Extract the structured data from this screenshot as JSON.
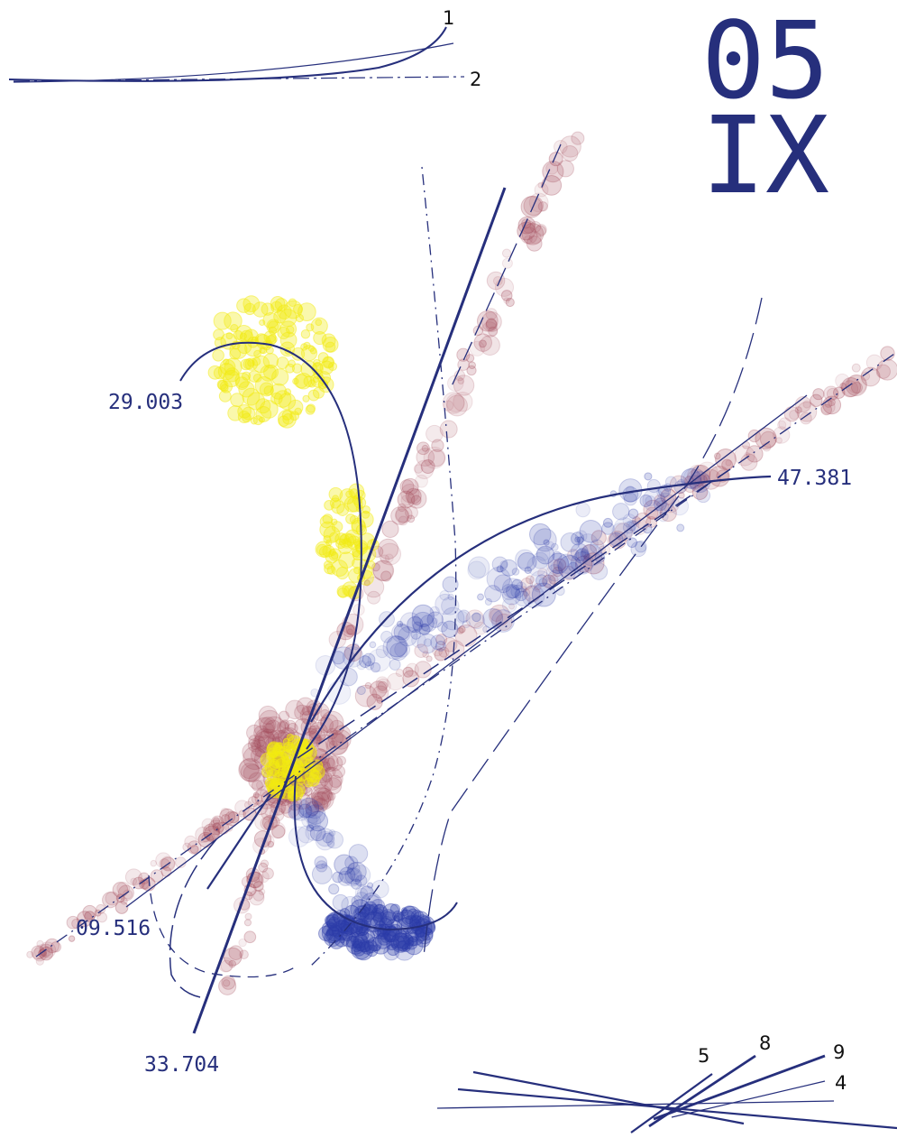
{
  "title": {
    "line1": "05",
    "line2": "IX"
  },
  "track_labels": [
    "29.003",
    "47.381",
    "09.516",
    "33.704"
  ],
  "legend_top": [
    "1",
    "2"
  ],
  "legend_bottom": [
    "5",
    "8",
    "9",
    "4"
  ]
}
